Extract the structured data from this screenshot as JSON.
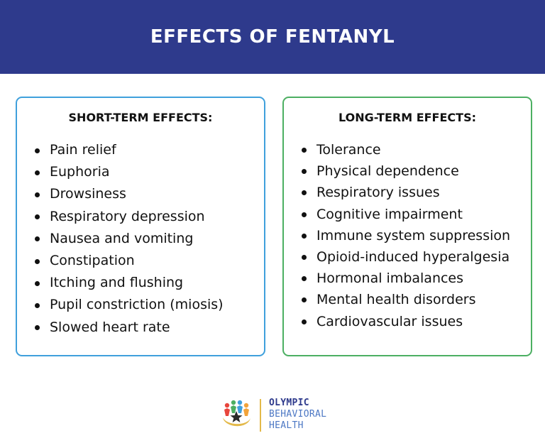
{
  "header": {
    "title": "EFFECTS OF FENTANYL"
  },
  "short_term": {
    "heading": "SHORT-TERM EFFECTS:",
    "items": [
      "Pain relief",
      "Euphoria",
      "Drowsiness",
      "Respiratory depression",
      "Nausea and vomiting",
      "Constipation",
      "Itching and flushing",
      "Pupil constriction (miosis)",
      "Slowed heart rate"
    ]
  },
  "long_term": {
    "heading": "LONG-TERM EFFECTS:",
    "items": [
      "Tolerance",
      "Physical dependence",
      "Respiratory issues",
      "Cognitive impairment",
      "Immune system suppression",
      "Opioid-induced hyperalgesia",
      "Hormonal imbalances",
      "Mental health disorders",
      "Cardiovascular issues"
    ]
  },
  "footer": {
    "logo_icon": "figures-circle-logo-icon",
    "logo_line1": "OLYMPIC",
    "logo_line2": "BEHAVIORAL",
    "logo_line3": "HEALTH"
  },
  "colors": {
    "header_bg": "#2e3a8c",
    "short_term_border": "#3fa0dc",
    "long_term_border": "#4caf62",
    "logo_accent": "#e3b94a"
  }
}
